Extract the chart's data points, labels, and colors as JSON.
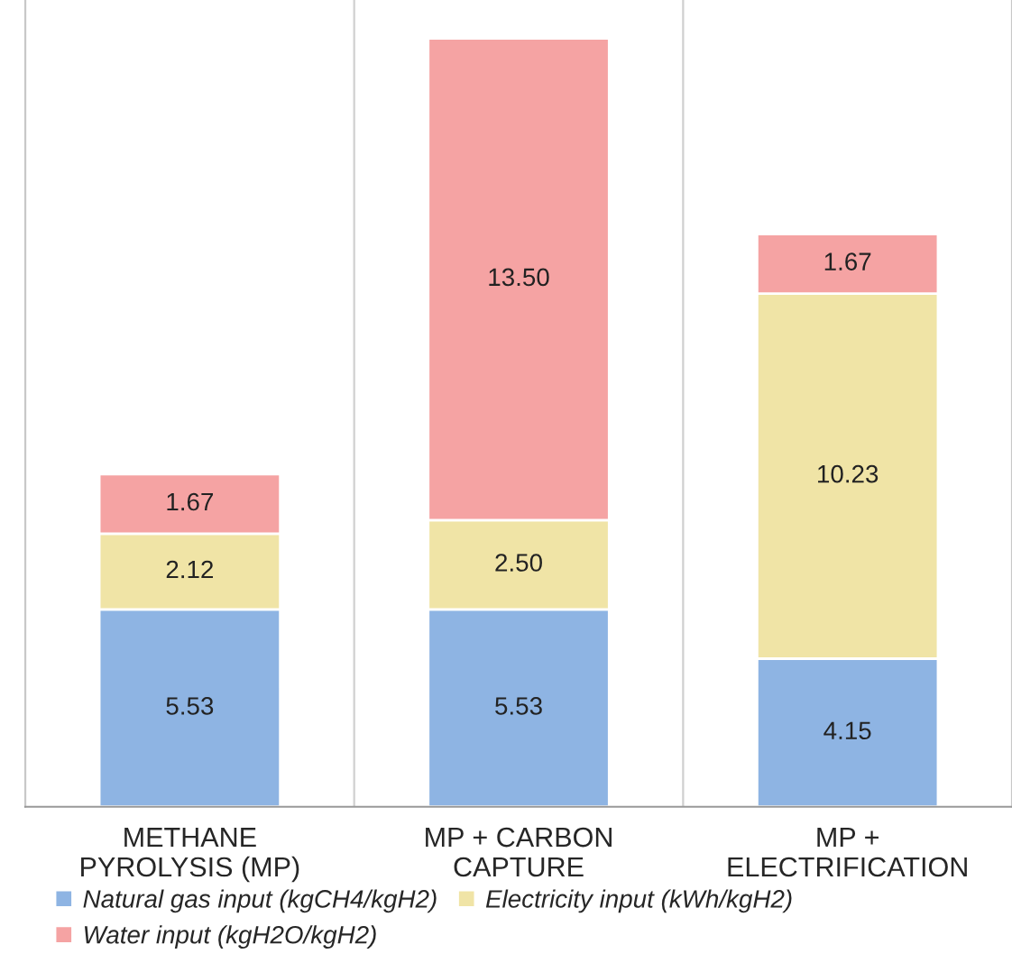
{
  "chart_data": {
    "type": "bar",
    "stacked": true,
    "grid": "x",
    "legend": "bottom",
    "categories": [
      "METHANE\nPYROLYSIS (MP)",
      "MP + CARBON\nCAPTURE",
      "MP +\nELECTRIFICATION"
    ],
    "series": [
      {
        "name": "Natural gas input (kgCH4/kgH2)",
        "color": "#8eb4e3",
        "values": [
          5.53,
          5.53,
          4.15
        ],
        "value_labels": [
          "5.53",
          "5.53",
          "4.15"
        ]
      },
      {
        "name": "Electricity input (kWh/kgH2)",
        "color": "#f0e4a6",
        "values": [
          2.12,
          2.5,
          10.23
        ],
        "value_labels": [
          "2.12",
          "2.50",
          "10.23"
        ]
      },
      {
        "name": "Water input (kgH2O/kgH2)",
        "color": "#f5a3a3",
        "values": [
          1.67,
          13.5,
          1.67
        ],
        "value_labels": [
          "1.67",
          "13.50",
          "1.67"
        ]
      }
    ]
  }
}
